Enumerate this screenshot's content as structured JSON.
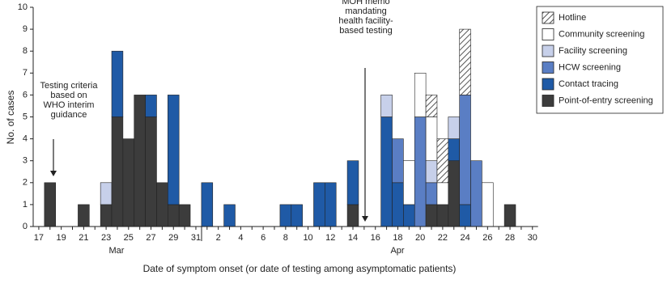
{
  "chart_data": {
    "type": "stacked_bar",
    "y_label": "No. of cases",
    "x_label": "Date of symptom onset (or date of testing among asymptomatic patients)",
    "month_labels": [
      "Mar",
      "Apr"
    ],
    "categories": [
      "17",
      null,
      "19",
      null,
      "21",
      null,
      "23",
      null,
      "25",
      null,
      "27",
      null,
      "29",
      null,
      "31",
      null,
      "2",
      null,
      "4",
      null,
      "6",
      null,
      "8",
      null,
      "10",
      null,
      "12",
      null,
      "14",
      null,
      "16",
      null,
      "18",
      null,
      "20",
      null,
      "22",
      null,
      "24",
      null,
      "26",
      null,
      "28",
      null,
      "30"
    ],
    "ylim": [
      0,
      10
    ],
    "yticks": [
      0,
      1,
      2,
      3,
      4,
      5,
      6,
      7,
      8,
      9,
      10
    ],
    "grid": false,
    "legend": "top-right",
    "annotations": [
      {
        "lines": [
          "Testing criteria",
          "based on",
          "WHO interim",
          "guidance"
        ]
      },
      {
        "lines": [
          "MOH memo",
          "mandating",
          "health facility-",
          "based testing"
        ]
      }
    ],
    "series": [
      {
        "name": "Point-of-entry screening",
        "color": "#3c3c3c",
        "values": [
          0,
          2,
          0,
          0,
          1,
          0,
          1,
          5,
          4,
          6,
          5,
          2,
          1,
          1,
          0,
          0,
          0,
          0,
          0,
          0,
          0,
          0,
          0,
          0,
          0,
          0,
          0,
          0,
          1,
          0,
          0,
          0,
          0,
          0,
          0,
          1,
          1,
          3,
          0,
          0,
          0,
          0,
          1,
          0,
          0
        ]
      },
      {
        "name": "Contact tracing",
        "color": "#1f5aa6",
        "values": [
          0,
          0,
          0,
          0,
          0,
          0,
          0,
          3,
          0,
          0,
          1,
          0,
          5,
          0,
          0,
          2,
          0,
          1,
          0,
          0,
          0,
          0,
          1,
          1,
          0,
          2,
          2,
          0,
          2,
          0,
          0,
          5,
          2,
          1,
          0,
          0,
          0,
          1,
          1,
          0,
          0,
          0,
          0,
          0,
          0
        ]
      },
      {
        "name": "HCW screening",
        "color": "#5a7ec4",
        "values": [
          0,
          0,
          0,
          0,
          0,
          0,
          0,
          0,
          0,
          0,
          0,
          0,
          0,
          0,
          0,
          0,
          0,
          0,
          0,
          0,
          0,
          0,
          0,
          0,
          0,
          0,
          0,
          0,
          0,
          0,
          0,
          0,
          2,
          0,
          5,
          1,
          0,
          0,
          5,
          3,
          0,
          0,
          0,
          0,
          0
        ]
      },
      {
        "name": "Facility screening",
        "color": "#c7d0ea",
        "values": [
          0,
          0,
          0,
          0,
          0,
          0,
          1,
          0,
          0,
          0,
          0,
          0,
          0,
          0,
          0,
          0,
          0,
          0,
          0,
          0,
          0,
          0,
          0,
          0,
          0,
          0,
          0,
          0,
          0,
          0,
          0,
          1,
          0,
          0,
          0,
          1,
          0,
          1,
          0,
          0,
          0,
          0,
          0,
          0,
          0
        ]
      },
      {
        "name": "Community screening",
        "color": "#ffffff",
        "values": [
          0,
          0,
          0,
          0,
          0,
          0,
          0,
          0,
          0,
          0,
          0,
          0,
          0,
          0,
          0,
          0,
          0,
          0,
          0,
          0,
          0,
          0,
          0,
          0,
          0,
          0,
          0,
          0,
          0,
          0,
          0,
          0,
          0,
          2,
          2,
          2,
          1,
          0,
          0,
          0,
          2,
          0,
          0,
          0,
          0
        ]
      },
      {
        "name": "Hotline",
        "color": "#555555",
        "hatch": true,
        "values": [
          0,
          0,
          0,
          0,
          0,
          0,
          0,
          0,
          0,
          0,
          0,
          0,
          0,
          0,
          0,
          0,
          0,
          0,
          0,
          0,
          0,
          0,
          0,
          0,
          0,
          0,
          0,
          0,
          0,
          0,
          0,
          0,
          0,
          0,
          0,
          1,
          2,
          0,
          3,
          0,
          0,
          0,
          0,
          0,
          0
        ]
      }
    ]
  }
}
